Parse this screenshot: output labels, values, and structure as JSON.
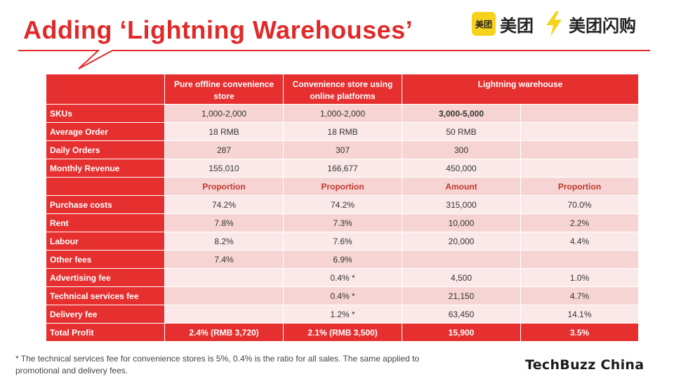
{
  "title": "Adding ‘Lightning Warehouses’",
  "logos": {
    "meituan_badge": "美团",
    "meituan_text": "美团",
    "shangou_text": "美团闪购"
  },
  "table": {
    "headers": [
      "",
      "Pure offline convenience store",
      "Convenience  store using online platforms",
      "Lightning warehouse"
    ],
    "rows": [
      {
        "label": "SKUs",
        "c1": "1,000-2,000",
        "c2": "1,000-2,000",
        "c3": "3,000-5,000",
        "c4": ""
      },
      {
        "label": "Average Order",
        "c1": "18 RMB",
        "c2": "18 RMB",
        "c3": "50 RMB",
        "c4": ""
      },
      {
        "label": "Daily Orders",
        "c1": "287",
        "c2": "307",
        "c3": "300",
        "c4": ""
      },
      {
        "label": "Monthly Revenue",
        "c1": "155,010",
        "c2": "166,677",
        "c3": "450,000",
        "c4": ""
      },
      {
        "label": "",
        "c1": "Proportion",
        "c2": "Proportion",
        "c3": "Amount",
        "c4": "Proportion"
      },
      {
        "label": "Purchase costs",
        "c1": "74.2%",
        "c2": "74.2%",
        "c3": "315,000",
        "c4": "70.0%"
      },
      {
        "label": "Rent",
        "c1": "7.8%",
        "c2": "7.3%",
        "c3": "10,000",
        "c4": "2.2%"
      },
      {
        "label": "Labour",
        "c1": "8.2%",
        "c2": "7.6%",
        "c3": "20,000",
        "c4": "4.4%"
      },
      {
        "label": "Other fees",
        "c1": "7.4%",
        "c2": "6.9%",
        "c3": "",
        "c4": ""
      },
      {
        "label": "Advertising  fee",
        "c1": "",
        "c2": "0.4% *",
        "c3": "4,500",
        "c4": "1.0%"
      },
      {
        "label": "Technical  services fee",
        "c1": "",
        "c2": "0.4% *",
        "c3": "21,150",
        "c4": "4.7%"
      },
      {
        "label": "Delivery  fee",
        "c1": "",
        "c2": "1.2% *",
        "c3": "63,450",
        "c4": "14.1%"
      },
      {
        "label": "Total Profit",
        "c1": "2.4% (RMB 3,720)",
        "c2": "2.1% (RMB 3,500)",
        "c3": "15,900",
        "c4": "3.5%"
      }
    ]
  },
  "footnote": "* The technical services fee for convenience stores is 5%, 0.4% is the ratio for all sales. The same applied to promotional and delivery fees.",
  "brand": "TechBuzz China",
  "colors": {
    "accent": "#e62f2f",
    "row_dark": "#f7d4d4",
    "row_light": "#fbe9e9"
  }
}
